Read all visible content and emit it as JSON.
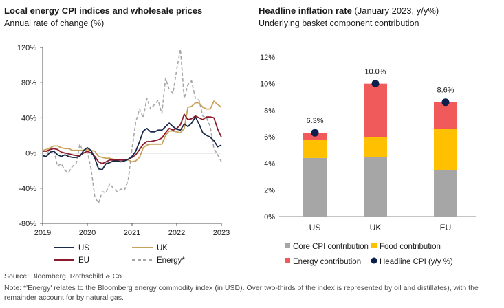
{
  "left_panel": {
    "title": "Local energy CPI indices and wholesale prices",
    "subtitle": "Annual rate of change (%)"
  },
  "right_panel": {
    "title_bold": "Headline inflation rate",
    "title_rest": " (January 2023, y/y%)",
    "subtitle": "Underlying basket component contribution"
  },
  "footer": {
    "source": "Source: Bloomberg, Rothschild & Co",
    "note": "Note: *'Energy' relates to the Bloomberg energy commodity index (in USD). Over two-thirds of the index is represented by oil and distillates), with the remainder account for by natural gas."
  },
  "colors": {
    "us": "#1b2a4a",
    "uk": "#c9a25a",
    "eu": "#8b1a2b",
    "energy": "#a6a6a6",
    "core": "#a6a6a6",
    "food": "#ffc000",
    "energy_bar": "#f05a5a",
    "headline_dot": "#0d1f4e"
  },
  "chart_data": [
    {
      "type": "line",
      "ylim": [
        -80,
        120
      ],
      "yticks": [
        "120%",
        "80%",
        "40%",
        "0%",
        "-40%",
        "-80%"
      ],
      "ytick_values": [
        120,
        80,
        40,
        0,
        -40,
        -80
      ],
      "xlim": [
        2019,
        2023
      ],
      "xticks": [
        "2019",
        "2020",
        "2021",
        "2022",
        "2023"
      ],
      "xtick_values": [
        2019,
        2020,
        2021,
        2022,
        2023
      ],
      "legend": [
        "US",
        "UK",
        "EU",
        "Energy*"
      ],
      "series": [
        {
          "name": "US",
          "style": "solid",
          "x": [
            2019.0,
            2019.083,
            2019.167,
            2019.25,
            2019.333,
            2019.417,
            2019.5,
            2019.583,
            2019.667,
            2019.75,
            2019.833,
            2019.917,
            2020.0,
            2020.083,
            2020.167,
            2020.25,
            2020.333,
            2020.417,
            2020.5,
            2020.583,
            2020.667,
            2020.75,
            2020.833,
            2020.917,
            2021.0,
            2021.083,
            2021.167,
            2021.25,
            2021.333,
            2021.417,
            2021.5,
            2021.583,
            2021.667,
            2021.75,
            2021.833,
            2021.917,
            2022.0,
            2022.083,
            2022.167,
            2022.25,
            2022.333,
            2022.417,
            2022.5,
            2022.583,
            2022.667,
            2022.75,
            2022.833,
            2022.917,
            2023.0
          ],
          "values": [
            -3,
            -4,
            1,
            2,
            -2,
            -4,
            -2,
            -4,
            -5,
            -5,
            -4,
            3,
            6,
            3,
            -6,
            -18,
            -19,
            -12,
            -11,
            -9,
            -9,
            -10,
            -9,
            -7,
            -4,
            2,
            13,
            25,
            28,
            24,
            24,
            26,
            26,
            30,
            34,
            30,
            27,
            26,
            33,
            30,
            34,
            41,
            33,
            23,
            20,
            18,
            14,
            7,
            9
          ]
        },
        {
          "name": "UK",
          "style": "solid",
          "x": [
            2019.0,
            2019.083,
            2019.167,
            2019.25,
            2019.333,
            2019.417,
            2019.5,
            2019.583,
            2019.667,
            2019.75,
            2019.833,
            2019.917,
            2020.0,
            2020.083,
            2020.167,
            2020.25,
            2020.333,
            2020.417,
            2020.5,
            2020.583,
            2020.667,
            2020.75,
            2020.833,
            2020.917,
            2021.0,
            2021.083,
            2021.167,
            2021.25,
            2021.333,
            2021.417,
            2021.5,
            2021.583,
            2021.667,
            2021.75,
            2021.833,
            2021.917,
            2022.0,
            2022.083,
            2022.167,
            2022.25,
            2022.333,
            2022.417,
            2022.5,
            2022.583,
            2022.667,
            2022.75,
            2022.833,
            2022.917,
            2023.0
          ],
          "values": [
            3,
            4,
            6,
            8,
            8,
            6,
            5,
            5,
            3,
            3,
            3,
            3,
            4,
            3,
            2,
            -4,
            -5,
            -6,
            -6,
            -7,
            -8,
            -8,
            -8,
            -8,
            -10,
            -9,
            -5,
            6,
            9,
            10,
            10,
            10,
            10,
            20,
            25,
            25,
            24,
            23,
            28,
            52,
            53,
            57,
            57,
            52,
            50,
            50,
            59,
            55,
            52
          ]
        },
        {
          "name": "EU",
          "style": "solid",
          "x": [
            2019.0,
            2019.083,
            2019.167,
            2019.25,
            2019.333,
            2019.417,
            2019.5,
            2019.583,
            2019.667,
            2019.75,
            2019.833,
            2019.917,
            2020.0,
            2020.083,
            2020.167,
            2020.25,
            2020.333,
            2020.417,
            2020.5,
            2020.583,
            2020.667,
            2020.75,
            2020.833,
            2020.917,
            2021.0,
            2021.083,
            2021.167,
            2021.25,
            2021.333,
            2021.417,
            2021.5,
            2021.583,
            2021.667,
            2021.75,
            2021.833,
            2021.917,
            2022.0,
            2022.083,
            2022.167,
            2022.25,
            2022.333,
            2022.417,
            2022.5,
            2022.583,
            2022.667,
            2022.75,
            2022.833,
            2022.917,
            2023.0
          ],
          "values": [
            2,
            2,
            4,
            5,
            4,
            1,
            0,
            -1,
            -2,
            -3,
            -3,
            0,
            2,
            0,
            -4,
            -10,
            -12,
            -10,
            -8,
            -8,
            -8,
            -8,
            -8,
            -7,
            -5,
            -2,
            4,
            10,
            13,
            13,
            14,
            15,
            17,
            23,
            28,
            26,
            28,
            32,
            44,
            38,
            39,
            42,
            40,
            38,
            41,
            41,
            40,
            27,
            18
          ]
        },
        {
          "name": "Energy*",
          "style": "dashed",
          "x": [
            2019.0,
            2019.083,
            2019.167,
            2019.25,
            2019.333,
            2019.417,
            2019.5,
            2019.583,
            2019.667,
            2019.75,
            2019.833,
            2019.917,
            2020.0,
            2020.083,
            2020.167,
            2020.25,
            2020.333,
            2020.417,
            2020.5,
            2020.583,
            2020.667,
            2020.75,
            2020.833,
            2020.917,
            2021.0,
            2021.083,
            2021.167,
            2021.25,
            2021.333,
            2021.417,
            2021.5,
            2021.583,
            2021.667,
            2021.75,
            2021.833,
            2021.917,
            2022.0,
            2022.083,
            2022.167,
            2022.25,
            2022.333,
            2022.417,
            2022.5,
            2022.583,
            2022.667,
            2022.75,
            2022.833,
            2022.917,
            2023.0
          ],
          "values": [
            -5,
            -2,
            5,
            4,
            -15,
            -12,
            -20,
            -22,
            -15,
            -12,
            10,
            0,
            2,
            -18,
            -50,
            -57,
            -44,
            -45,
            -35,
            -40,
            -44,
            -41,
            -42,
            -30,
            5,
            35,
            50,
            40,
            62,
            50,
            55,
            60,
            45,
            85,
            72,
            68,
            95,
            118,
            62,
            78,
            82,
            62,
            60,
            42,
            40,
            30,
            5,
            -2,
            -10
          ]
        }
      ]
    },
    {
      "type": "bar",
      "stacked": true,
      "categories": [
        "US",
        "UK",
        "EU"
      ],
      "ylim": [
        0,
        12
      ],
      "yticks": [
        "12%",
        "10%",
        "8%",
        "6%",
        "4%",
        "2%",
        "0%"
      ],
      "ytick_values": [
        12,
        10,
        8,
        6,
        4,
        2,
        0
      ],
      "legend": [
        "Core CPI contribution",
        "Food contribution",
        "Energy contribution",
        "Headline CPI (y/y %)"
      ],
      "series": [
        {
          "name": "Core CPI contribution",
          "values": [
            4.4,
            4.5,
            3.5
          ]
        },
        {
          "name": "Food contribution",
          "values": [
            1.35,
            1.5,
            3.1
          ]
        },
        {
          "name": "Energy contribution",
          "values": [
            0.55,
            4.0,
            2.0
          ]
        }
      ],
      "headline": {
        "name": "Headline CPI (y/y %)",
        "values": [
          6.3,
          10.0,
          8.6
        ],
        "labels": [
          "6.3%",
          "10.0%",
          "8.6%"
        ]
      }
    }
  ]
}
